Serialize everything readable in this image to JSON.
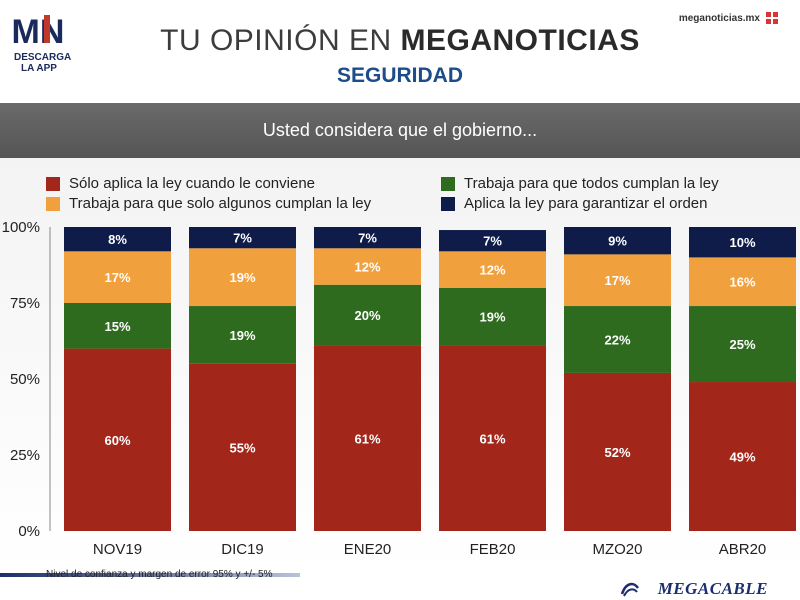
{
  "header": {
    "title_part1": "TU OPINIÓN EN",
    "title_part2": "MEGANOTICIAS",
    "subtitle": "SEGURIDAD",
    "logo_text": "MN",
    "logo_caption_1": "DESCARGA",
    "logo_caption_2": "LA APP",
    "site": "meganoticias.mx"
  },
  "question": "Usted considera que el gobierno...",
  "footer": {
    "note": "Nivel de confianza y margen de error 95% y +/- 5%",
    "brand": "MEGACABLE"
  },
  "colors": {
    "red": "#a3261a",
    "green": "#2e6b1f",
    "orange": "#f0a03c",
    "navy": "#0f1c4a"
  },
  "chart_data": {
    "type": "bar",
    "stacked": true,
    "categories": [
      "NOV19",
      "DIC19",
      "ENE20",
      "FEB20",
      "MZO20",
      "ABR20"
    ],
    "series": [
      {
        "name": "Sólo aplica la ley cuando le conviene",
        "color": "#a3261a",
        "values": [
          60,
          55,
          61,
          61,
          52,
          49
        ]
      },
      {
        "name": "Trabaja para que todos cumplan la ley",
        "color": "#2e6b1f",
        "values": [
          15,
          19,
          20,
          19,
          22,
          25
        ]
      },
      {
        "name": "Trabaja para que solo algunos cumplan la ley",
        "color": "#f0a03c",
        "values": [
          17,
          19,
          12,
          12,
          17,
          16
        ]
      },
      {
        "name": "Aplica la ley para garantizar el orden",
        "color": "#0f1c4a",
        "values": [
          8,
          7,
          7,
          7,
          9,
          10
        ]
      }
    ],
    "data_labels": [
      [
        "60%",
        "55%",
        "61%",
        "61%",
        "52%",
        "49%"
      ],
      [
        "15%",
        "19%",
        "20%",
        "19%",
        "22%",
        "25%"
      ],
      [
        "17%",
        "19%",
        "12%",
        "12%",
        "17%",
        "16%"
      ],
      [
        "8%",
        "7%",
        "7%",
        "7%",
        "9%",
        "10%"
      ]
    ],
    "y_ticks": [
      "0%",
      "25%",
      "50%",
      "75%",
      "100%"
    ],
    "y_tick_values": [
      0,
      25,
      50,
      75,
      100
    ],
    "ylim": [
      0,
      100
    ],
    "grid": false,
    "legend_position": "top"
  }
}
